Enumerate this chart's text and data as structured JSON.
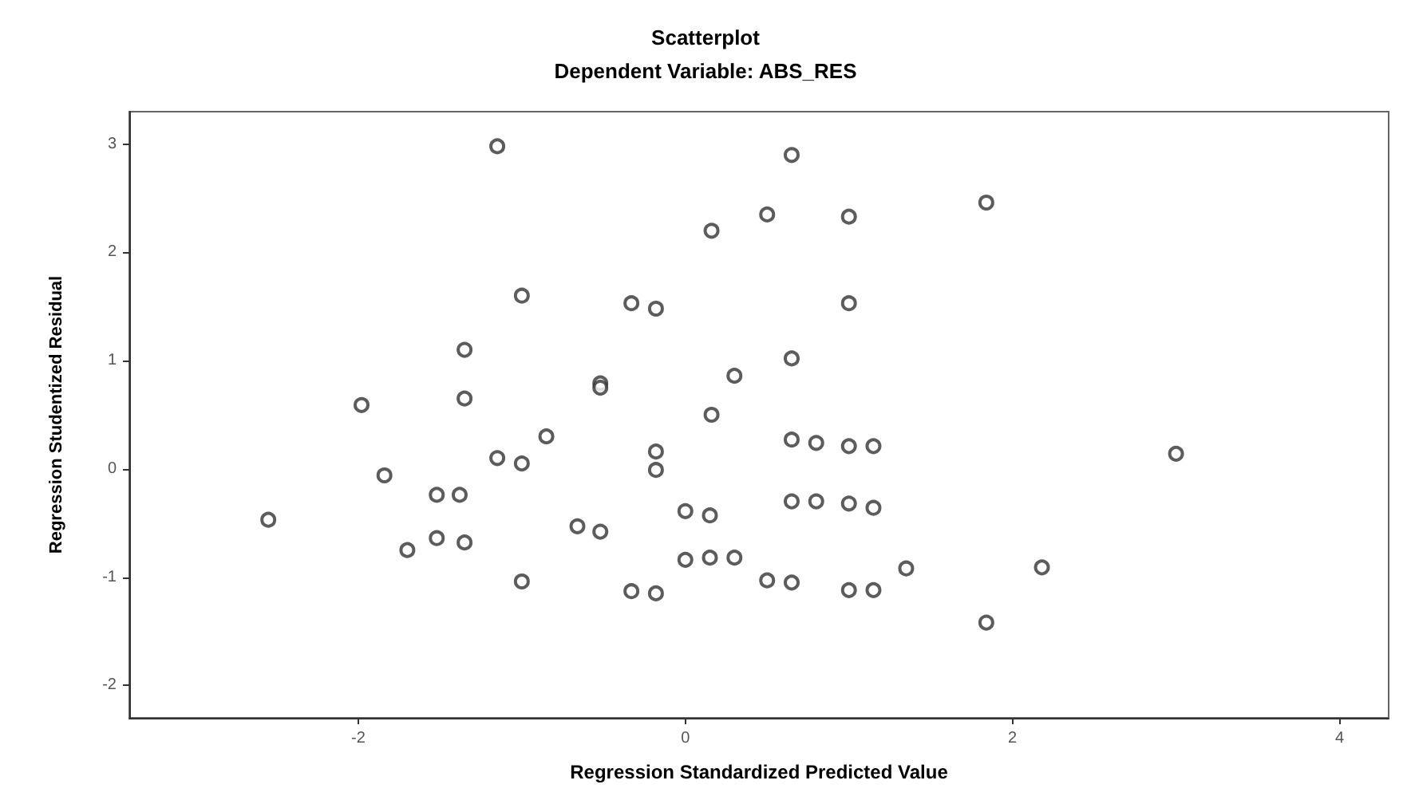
{
  "chart_data": {
    "type": "scatter",
    "title": "Scatterplot",
    "subtitle": "Dependent Variable: ABS_RES",
    "xlabel": "Regression Standardized Predicted Value",
    "ylabel": "Regression Studentized Residual",
    "x": [
      -2.55,
      -1.98,
      -1.84,
      -1.7,
      -1.52,
      -1.38,
      -1.52,
      -1.35,
      -1.35,
      -1.35,
      -1.15,
      -1.15,
      -1.0,
      -1.0,
      -1.0,
      -0.85,
      -0.66,
      -0.52,
      -0.52,
      -0.52,
      -0.33,
      -0.18,
      -0.33,
      -0.18,
      -0.18,
      -0.18,
      0,
      0.15,
      0,
      0.15,
      0.3,
      0.16,
      0.16,
      0.3,
      0.5,
      0.65,
      1.0,
      1.0,
      0.65,
      1.84,
      0.65,
      0.8,
      1.0,
      1.15,
      0.65,
      0.8,
      1.0,
      1.15,
      0.5,
      0.65,
      1.0,
      1.15,
      1.35,
      2.18,
      1.84,
      3.0
    ],
    "values": [
      -0.47,
      0.59,
      -0.06,
      -0.75,
      -0.24,
      -0.24,
      -0.64,
      -0.68,
      1.1,
      0.65,
      2.98,
      0.1,
      0.05,
      1.6,
      -1.04,
      0.3,
      -0.53,
      -0.58,
      0.79,
      0.75,
      1.53,
      1.48,
      -1.13,
      -1.15,
      0.16,
      -0.01,
      -0.39,
      -0.43,
      -0.84,
      -0.82,
      -0.82,
      2.2,
      0.5,
      0.86,
      2.35,
      2.9,
      2.33,
      1.53,
      1.02,
      2.46,
      0.27,
      0.24,
      0.21,
      0.21,
      -0.3,
      -0.3,
      -0.32,
      -0.36,
      -1.03,
      -1.05,
      -1.12,
      -1.12,
      -0.92,
      -0.91,
      -1.42,
      0.14
    ],
    "color": "#333333",
    "marker": "circle",
    "xlim": [
      -3.4,
      4.3
    ],
    "xticks": [
      -2,
      0,
      2,
      4
    ],
    "ylim": [
      -2.3,
      3.3
    ],
    "yticks": [
      -2,
      -1,
      0,
      1,
      2,
      3
    ],
    "grid": false
  }
}
